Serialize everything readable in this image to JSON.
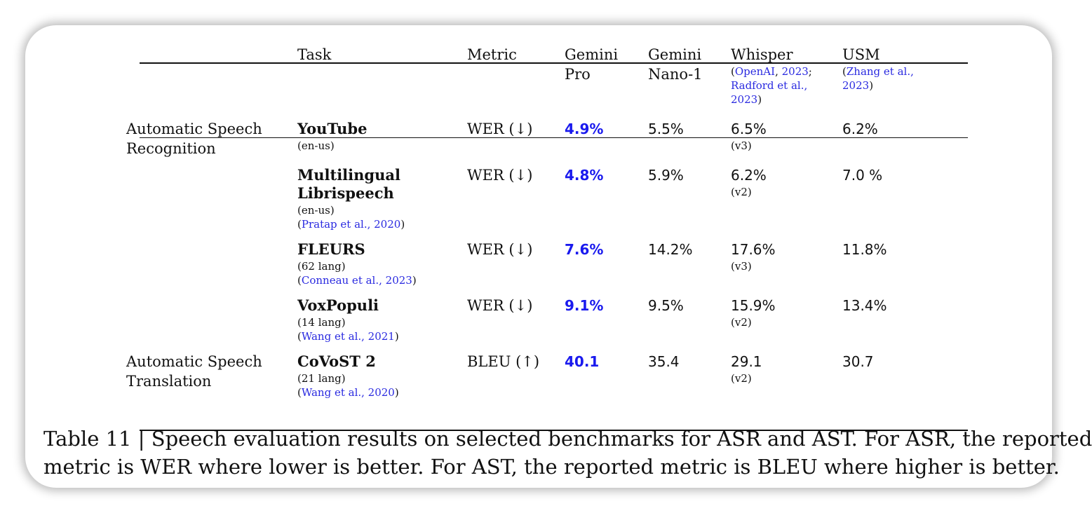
{
  "header": {
    "task": "Task",
    "metric": "Metric",
    "gemini_pro": [
      "Gemini",
      "Pro"
    ],
    "gemini_nano": [
      "Gemini",
      "Nano-1"
    ],
    "whisper": {
      "name": "Whisper",
      "cite_l1_a": "OpenAI",
      "cite_l1_b": "2023",
      "cite_l2": "Radford et al.,",
      "cite_l3": "2023"
    },
    "usm": {
      "name": "USM",
      "cite_l1": "Zhang et al.,",
      "cite_l2": "2023"
    }
  },
  "groups": [
    {
      "line1": "Automatic Speech",
      "line2": "Recognition"
    },
    {
      "line1": "Automatic Speech",
      "line2": "Translation"
    }
  ],
  "rows": [
    {
      "task": "YouTube",
      "task_line2": "",
      "sub": "(en-us)",
      "cite": "",
      "metric": "WER (↓)",
      "gemini_pro": "4.9%",
      "gemini_nano": "5.5%",
      "whisper": "6.5%",
      "whisper_ver": "(v3)",
      "usm": "6.2%"
    },
    {
      "task": "Multilingual",
      "task_line2": "Librispeech",
      "sub": "(en-us)",
      "cite": "Pratap et al., 2020",
      "metric": "WER (↓)",
      "gemini_pro": "4.8%",
      "gemini_nano": "5.9%",
      "whisper": "6.2%",
      "whisper_ver": "(v2)",
      "usm": "7.0 %"
    },
    {
      "task": "FLEURS",
      "task_line2": "",
      "sub": "(62 lang)",
      "cite": "Conneau et al., 2023",
      "metric": "WER (↓)",
      "gemini_pro": "7.6%",
      "gemini_nano": "14.2%",
      "whisper": "17.6%",
      "whisper_ver": "(v3)",
      "usm": "11.8%"
    },
    {
      "task": "VoxPopuli",
      "task_line2": "",
      "sub": "(14 lang)",
      "cite": "Wang et al., 2021",
      "metric": "WER (↓)",
      "gemini_pro": "9.1%",
      "gemini_nano": "9.5%",
      "whisper": "15.9%",
      "whisper_ver": "(v2)",
      "usm": "13.4%"
    },
    {
      "task": "CoVoST 2",
      "task_line2": "",
      "sub": "(21 lang)",
      "cite": "Wang et al., 2020",
      "metric": "BLEU (↑)",
      "gemini_pro": "40.1",
      "gemini_nano": "35.4",
      "whisper": "29.1",
      "whisper_ver": "(v2)",
      "usm": "30.7"
    }
  ],
  "caption": {
    "line1": "Table 11 | Speech evaluation results on selected benchmarks for ASR and AST. For ASR, the reported",
    "line2": "metric is WER where lower is better. For AST, the reported metric is BLEU where higher is better."
  },
  "colors": {
    "best": "#1a1aee",
    "link": "#2a2ae0"
  }
}
